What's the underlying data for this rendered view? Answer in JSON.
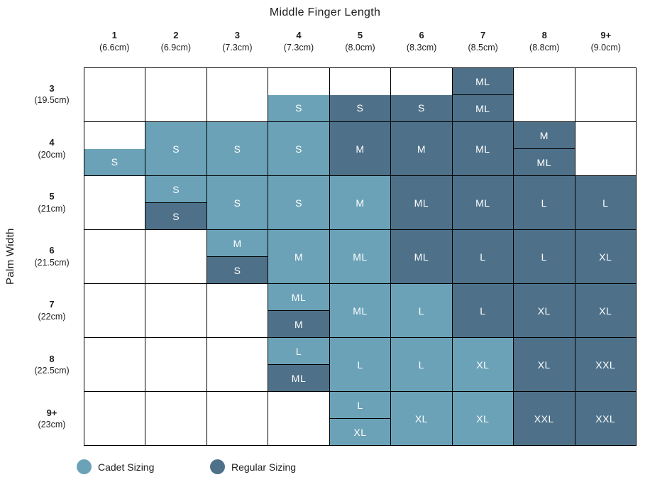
{
  "title": "Middle Finger Length",
  "y_axis_label": "Palm Width",
  "colors": {
    "cadet": "#6BA2B7",
    "regular": "#4E7189",
    "grid_border": "#000000",
    "cell_text": "#FFFFFF",
    "label_text": "#1D1D1D"
  },
  "legend": {
    "items": [
      {
        "label": "Cadet Sizing",
        "key": "cadet",
        "color": "#6BA2B7"
      },
      {
        "label": "Regular Sizing",
        "key": "regular",
        "color": "#4E7189"
      }
    ]
  },
  "chart_data": {
    "type": "heatmap",
    "title": "Middle Finger Length",
    "xlabel": "Middle Finger Length",
    "ylabel": "Palm Width",
    "legend_entries": [
      "Cadet Sizing",
      "Regular Sizing"
    ],
    "columns": [
      {
        "size": "1",
        "length": "(6.6cm)"
      },
      {
        "size": "2",
        "length": "(6.9cm)"
      },
      {
        "size": "3",
        "length": "(7.3cm)"
      },
      {
        "size": "4",
        "length": "(7.3cm)"
      },
      {
        "size": "5",
        "length": "(8.0cm)"
      },
      {
        "size": "6",
        "length": "(8.3cm)"
      },
      {
        "size": "7",
        "length": "(8.5cm)"
      },
      {
        "size": "8",
        "length": "(8.8cm)"
      },
      {
        "size": "9+",
        "length": "(9.0cm)"
      }
    ],
    "rows": [
      {
        "size": "3",
        "width": "(19.5cm)",
        "cells": [
          null,
          null,
          null,
          {
            "bottom": {
              "label": "S",
              "sizing": "cadet"
            }
          },
          {
            "bottom": {
              "label": "S",
              "sizing": "regular"
            }
          },
          {
            "bottom": {
              "label": "S",
              "sizing": "regular"
            }
          },
          {
            "top": {
              "label": "ML",
              "sizing": "regular"
            },
            "bottom": {
              "label": "ML",
              "sizing": "regular"
            }
          },
          null,
          null
        ]
      },
      {
        "size": "4",
        "width": "(20cm)",
        "cells": [
          {
            "bottom": {
              "label": "S",
              "sizing": "cadet"
            }
          },
          {
            "label": "S",
            "sizing": "cadet"
          },
          {
            "label": "S",
            "sizing": "cadet"
          },
          {
            "label": "S",
            "sizing": "cadet"
          },
          {
            "label": "M",
            "sizing": "regular"
          },
          {
            "label": "M",
            "sizing": "regular"
          },
          {
            "label": "ML",
            "sizing": "regular"
          },
          {
            "top": {
              "label": "M",
              "sizing": "regular"
            },
            "bottom": {
              "label": "ML",
              "sizing": "regular"
            }
          },
          null
        ]
      },
      {
        "size": "5",
        "width": "(21cm)",
        "cells": [
          null,
          {
            "top": {
              "label": "S",
              "sizing": "cadet"
            },
            "bottom": {
              "label": "S",
              "sizing": "regular"
            }
          },
          {
            "label": "S",
            "sizing": "cadet"
          },
          {
            "label": "S",
            "sizing": "cadet"
          },
          {
            "label": "M",
            "sizing": "cadet"
          },
          {
            "label": "ML",
            "sizing": "regular"
          },
          {
            "label": "ML",
            "sizing": "regular"
          },
          {
            "label": "L",
            "sizing": "regular"
          },
          {
            "label": "L",
            "sizing": "regular"
          }
        ]
      },
      {
        "size": "6",
        "width": "(21.5cm)",
        "cells": [
          null,
          null,
          {
            "top": {
              "label": "M",
              "sizing": "cadet"
            },
            "bottom": {
              "label": "S",
              "sizing": "regular"
            }
          },
          {
            "label": "M",
            "sizing": "cadet"
          },
          {
            "label": "ML",
            "sizing": "cadet"
          },
          {
            "label": "ML",
            "sizing": "regular"
          },
          {
            "label": "L",
            "sizing": "regular"
          },
          {
            "label": "L",
            "sizing": "regular"
          },
          {
            "label": "XL",
            "sizing": "regular"
          }
        ]
      },
      {
        "size": "7",
        "width": "(22cm)",
        "cells": [
          null,
          null,
          null,
          {
            "top": {
              "label": "ML",
              "sizing": "cadet"
            },
            "bottom": {
              "label": "M",
              "sizing": "regular"
            }
          },
          {
            "label": "ML",
            "sizing": "cadet"
          },
          {
            "label": "L",
            "sizing": "cadet"
          },
          {
            "label": "L",
            "sizing": "regular"
          },
          {
            "label": "XL",
            "sizing": "regular"
          },
          {
            "label": "XL",
            "sizing": "regular"
          }
        ]
      },
      {
        "size": "8",
        "width": "(22.5cm)",
        "cells": [
          null,
          null,
          null,
          {
            "top": {
              "label": "L",
              "sizing": "cadet"
            },
            "bottom": {
              "label": "ML",
              "sizing": "regular"
            }
          },
          {
            "label": "L",
            "sizing": "cadet"
          },
          {
            "label": "L",
            "sizing": "cadet"
          },
          {
            "label": "XL",
            "sizing": "cadet"
          },
          {
            "label": "XL",
            "sizing": "regular"
          },
          {
            "label": "XXL",
            "sizing": "regular"
          }
        ]
      },
      {
        "size": "9+",
        "width": "(23cm)",
        "cells": [
          null,
          null,
          null,
          null,
          {
            "top": {
              "label": "L",
              "sizing": "cadet"
            },
            "bottom": {
              "label": "XL",
              "sizing": "cadet"
            }
          },
          {
            "label": "XL",
            "sizing": "cadet"
          },
          {
            "label": "XL",
            "sizing": "cadet"
          },
          {
            "label": "XXL",
            "sizing": "regular"
          },
          {
            "label": "XXL",
            "sizing": "regular"
          }
        ]
      }
    ]
  }
}
